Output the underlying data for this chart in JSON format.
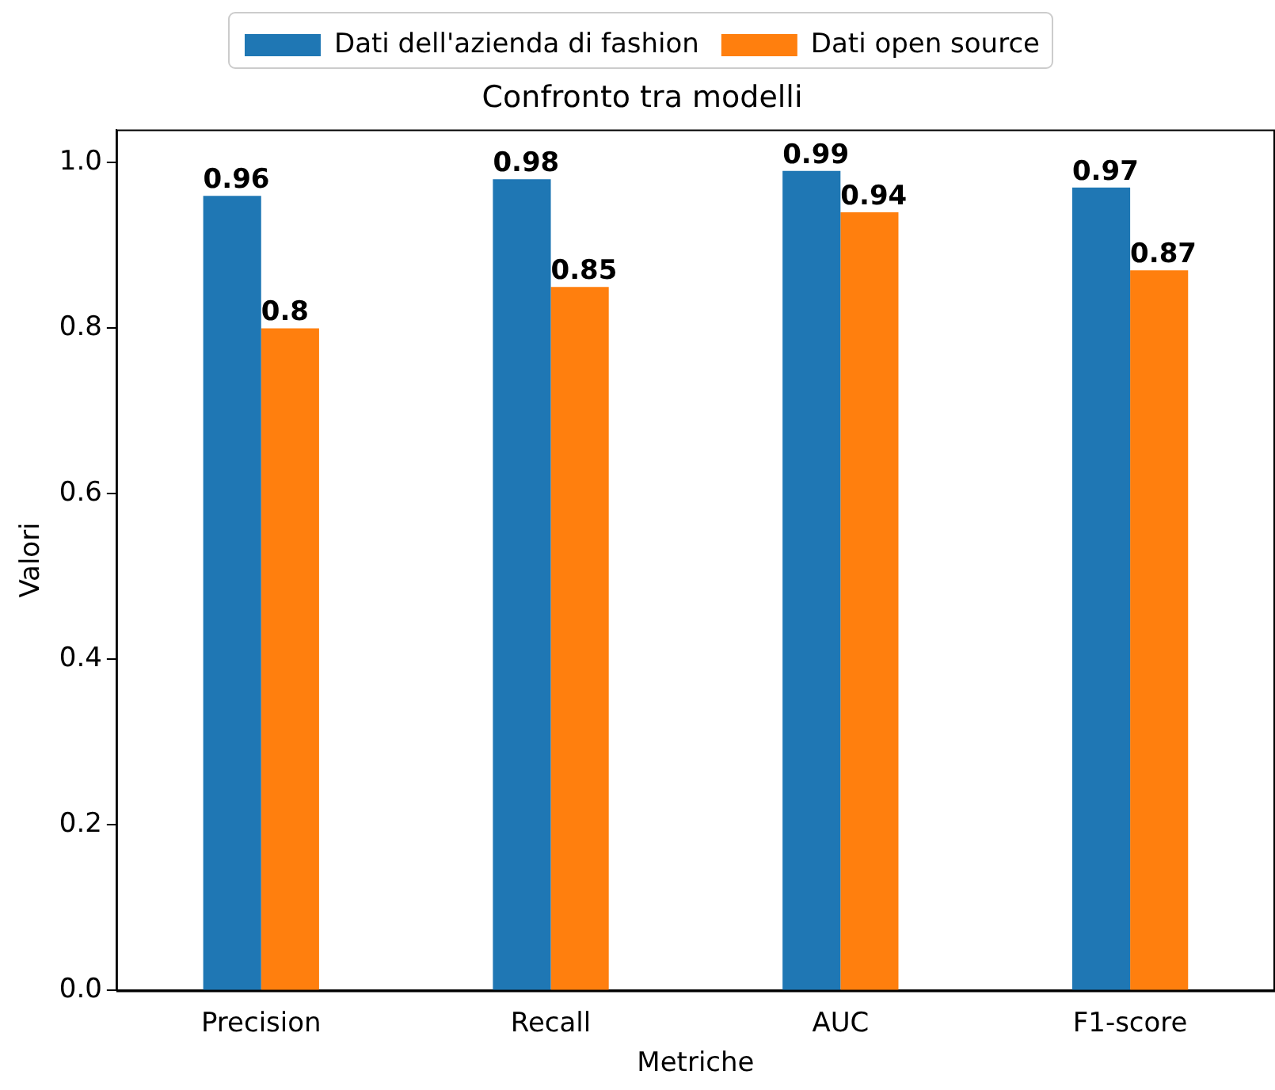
{
  "chart_data": {
    "type": "bar",
    "title": "Confronto tra modelli",
    "xlabel": "Metriche",
    "ylabel": "Valori",
    "categories": [
      "Precision",
      "Recall",
      "AUC",
      "F1-score"
    ],
    "series": [
      {
        "name": "Dati dell'azienda di fashion",
        "color": "#1f77b4",
        "values": [
          0.96,
          0.98,
          0.99,
          0.97
        ]
      },
      {
        "name": "Dati open source",
        "color": "#ff7f0e",
        "values": [
          0.8,
          0.85,
          0.94,
          0.87
        ]
      }
    ],
    "ylim": [
      0,
      1.04
    ],
    "yticks": [
      {
        "value": 0,
        "label": "0.0"
      },
      0.2,
      0.4,
      0.6,
      0.8,
      {
        "value": 1,
        "label": "1.0"
      }
    ],
    "grid": false,
    "legend": "top",
    "data_labels": true
  }
}
